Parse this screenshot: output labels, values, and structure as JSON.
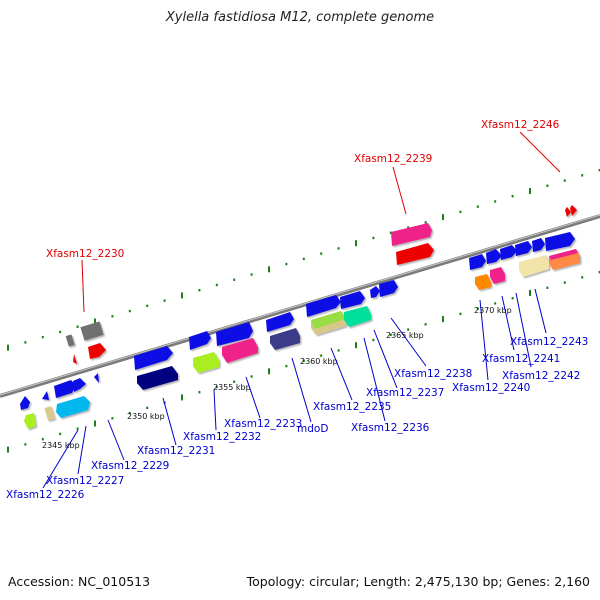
{
  "title": "Xylella fastidiosa M12, complete genome",
  "footer": {
    "accession": "Accession: NC_010513",
    "summary": "Topology: circular; Length: 2,475,130 bp; Genes: 2,160"
  },
  "colors": {
    "strand": "#7a7a7a",
    "tick_green": "#1d7f1d",
    "label_blue": "#0000cc",
    "label_red": "#dd0000"
  },
  "scale_labels": [
    "2345 kbp",
    "2350 kbp",
    "2355 kbp",
    "2360 kbp",
    "2365 kbp",
    "2370 kbp"
  ],
  "gene_labels": [
    {
      "text": "Xfasm12_2226",
      "color": "blue"
    },
    {
      "text": "Xfasm12_2227",
      "color": "blue"
    },
    {
      "text": "Xfasm12_2229",
      "color": "blue"
    },
    {
      "text": "Xfasm12_2230",
      "color": "red"
    },
    {
      "text": "Xfasm12_2231",
      "color": "blue"
    },
    {
      "text": "Xfasm12_2232",
      "color": "blue"
    },
    {
      "text": "Xfasm12_2233",
      "color": "blue"
    },
    {
      "text": "mdoD",
      "color": "blue"
    },
    {
      "text": "Xfasm12_2235",
      "color": "blue"
    },
    {
      "text": "Xfasm12_2236",
      "color": "blue"
    },
    {
      "text": "Xfasm12_2237",
      "color": "blue"
    },
    {
      "text": "Xfasm12_2238",
      "color": "blue"
    },
    {
      "text": "Xfasm12_2239",
      "color": "red"
    },
    {
      "text": "Xfasm12_2240",
      "color": "blue"
    },
    {
      "text": "Xfasm12_2241",
      "color": "blue"
    },
    {
      "text": "Xfasm12_2242",
      "color": "blue"
    },
    {
      "text": "Xfasm12_2243",
      "color": "blue"
    },
    {
      "text": "Xfasm12_2246",
      "color": "red"
    }
  ]
}
